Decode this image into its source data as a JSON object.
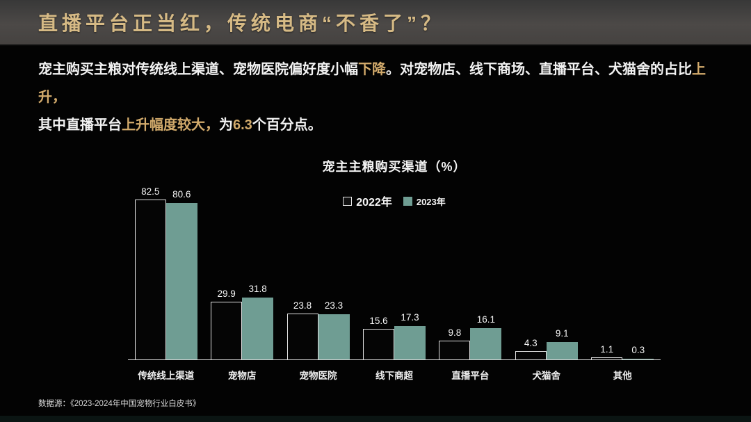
{
  "header": {
    "title": "直播平台正当红，传统电商“不香了”？"
  },
  "summary": {
    "lines": [
      [
        {
          "text": "宠主购买主粮对传统线上渠道、宠物医院偏好度小幅",
          "hl": false
        },
        {
          "text": "下降",
          "hl": true
        },
        {
          "text": "。对宠物店、线下商场、直播平台、犬猫舍的占比",
          "hl": false
        },
        {
          "text": "上升，",
          "hl": true
        }
      ],
      [
        {
          "text": "其中直播平台",
          "hl": false
        },
        {
          "text": "上升幅度较大，",
          "hl": true
        },
        {
          "text": "为",
          "hl": false
        },
        {
          "text": "6.3",
          "hl": true
        },
        {
          "text": "个百分点。",
          "hl": false
        }
      ]
    ]
  },
  "chart_data": {
    "type": "bar",
    "title": "宠主主粮购买渠道（%）",
    "categories": [
      "传统线上渠道",
      "宠物店",
      "宠物医院",
      "线下商超",
      "直播平台",
      "犬猫舍",
      "其他"
    ],
    "series": [
      {
        "name": "2022年",
        "values": [
          82.5,
          29.9,
          23.8,
          15.6,
          9.8,
          4.3,
          1.1
        ]
      },
      {
        "name": "2023年",
        "values": [
          80.6,
          31.8,
          23.3,
          17.3,
          16.1,
          9.1,
          0.3
        ]
      }
    ],
    "ylim": [
      0,
      90
    ],
    "grid": false,
    "legend_position": "top-center",
    "value_labels": true
  },
  "colors": {
    "accent_gold": "#d3ab6c",
    "title_gold": "#d6ba85",
    "bar_2023_fill": "#6f9d93",
    "bar_2022_fill": "#050505",
    "bar_2022_border": "#e3e3e3",
    "background": "#030303",
    "header_gradient_top": "#383838",
    "header_gradient_bottom": "#454240"
  },
  "footer": {
    "source": "数据源：《2023-2024年中国宠物行业白皮书》"
  }
}
